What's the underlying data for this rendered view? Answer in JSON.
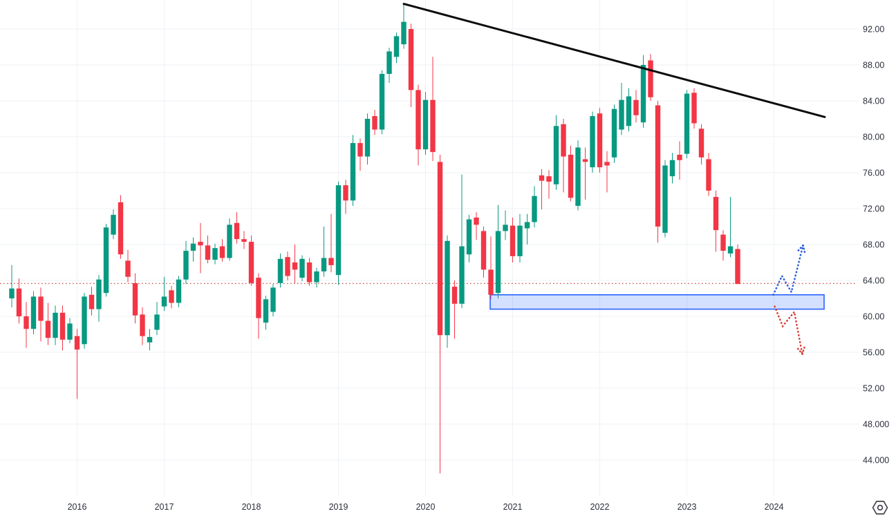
{
  "chart_data": {
    "type": "candlestick",
    "title": "",
    "interval": "monthly",
    "grid": true,
    "background": "#ffffff",
    "grid_color": "#eef1f6",
    "y_axis": {
      "side": "right",
      "min": 44,
      "max": 92,
      "step": 4,
      "labels": [
        "92.00",
        "88.00",
        "84.00",
        "80.00",
        "76.00",
        "72.00",
        "68.00",
        "64.00",
        "60.00",
        "56.00",
        "52.00",
        "48.000",
        "44.000"
      ],
      "values": [
        92,
        88,
        84,
        80,
        76,
        72,
        68,
        64,
        60,
        56,
        52,
        48,
        44
      ],
      "text_color": "#2a2e39"
    },
    "x_axis": {
      "labels": [
        "2016",
        "2017",
        "2018",
        "2019",
        "2020",
        "2021",
        "2022",
        "2023",
        "2024"
      ],
      "text_color": "#2a2e39"
    },
    "candle_colors": {
      "up": "#089981",
      "down": "#f23645"
    },
    "columns": [
      "month",
      "open",
      "high",
      "low",
      "close"
    ],
    "candles": [
      [
        "2015-04",
        62.0,
        65.7,
        61.0,
        63.1
      ],
      [
        "2015-05",
        63.1,
        64.2,
        59.2,
        60.0
      ],
      [
        "2015-06",
        60.0,
        61.6,
        56.5,
        58.6
      ],
      [
        "2015-07",
        58.6,
        62.8,
        58.0,
        62.2
      ],
      [
        "2015-08",
        62.2,
        63.2,
        57.2,
        59.5
      ],
      [
        "2015-09",
        59.5,
        61.5,
        56.8,
        57.6
      ],
      [
        "2015-10",
        57.6,
        61.2,
        56.8,
        60.4
      ],
      [
        "2015-11",
        60.4,
        61.2,
        56.2,
        57.4
      ],
      [
        "2015-12",
        57.4,
        59.8,
        57.0,
        59.2
      ],
      [
        "2016-01",
        57.8,
        58.6,
        50.8,
        56.3
      ],
      [
        "2016-02",
        56.9,
        62.6,
        56.4,
        62.2
      ],
      [
        "2016-03",
        62.4,
        63.3,
        60.1,
        60.8
      ],
      [
        "2016-04",
        60.8,
        64.6,
        59.4,
        64.1
      ],
      [
        "2016-05",
        62.6,
        70.3,
        62.2,
        69.9
      ],
      [
        "2016-06",
        69.1,
        71.9,
        68.6,
        71.3
      ],
      [
        "2016-07",
        72.7,
        73.5,
        66.4,
        66.9
      ],
      [
        "2016-08",
        66.2,
        67.4,
        63.8,
        64.4
      ],
      [
        "2016-09",
        63.7,
        64.8,
        59.2,
        60.1
      ],
      [
        "2016-10",
        60.2,
        61.0,
        56.8,
        57.8
      ],
      [
        "2016-11",
        57.1,
        58.6,
        56.2,
        57.7
      ],
      [
        "2016-12",
        58.5,
        61.6,
        57.9,
        60.2
      ],
      [
        "2017-01",
        61.1,
        64.4,
        60.6,
        62.2
      ],
      [
        "2017-02",
        62.9,
        63.4,
        60.9,
        61.5
      ],
      [
        "2017-03",
        61.5,
        64.5,
        61.0,
        64.1
      ],
      [
        "2017-04",
        64.1,
        68.4,
        63.6,
        67.3
      ],
      [
        "2017-05",
        67.3,
        68.8,
        66.1,
        68.1
      ],
      [
        "2017-06",
        68.3,
        70.4,
        64.8,
        67.9
      ],
      [
        "2017-07",
        67.9,
        69.0,
        65.9,
        66.3
      ],
      [
        "2017-08",
        66.3,
        68.1,
        65.8,
        67.6
      ],
      [
        "2017-09",
        67.8,
        68.6,
        66.1,
        66.5
      ],
      [
        "2017-10",
        66.5,
        70.9,
        66.2,
        70.2
      ],
      [
        "2017-11",
        70.4,
        71.6,
        68.1,
        68.6
      ],
      [
        "2017-12",
        68.6,
        69.5,
        67.5,
        68.3
      ],
      [
        "2018-01",
        68.3,
        69.0,
        63.4,
        63.7
      ],
      [
        "2018-02",
        64.3,
        64.8,
        57.5,
        59.8
      ],
      [
        "2018-03",
        59.3,
        62.3,
        58.5,
        61.9
      ],
      [
        "2018-04",
        60.5,
        63.6,
        60.0,
        63.2
      ],
      [
        "2018-05",
        63.7,
        67.0,
        63.2,
        66.4
      ],
      [
        "2018-06",
        66.6,
        67.2,
        64.0,
        64.5
      ],
      [
        "2018-07",
        66.0,
        68.0,
        63.7,
        65.2
      ],
      [
        "2018-08",
        64.3,
        66.8,
        63.9,
        66.4
      ],
      [
        "2018-09",
        66.0,
        66.5,
        63.4,
        63.8
      ],
      [
        "2018-10",
        63.8,
        65.4,
        63.2,
        65.0
      ],
      [
        "2018-11",
        65.0,
        70.0,
        64.4,
        66.5
      ],
      [
        "2018-12",
        66.5,
        71.4,
        64.9,
        65.7
      ],
      [
        "2019-01",
        64.6,
        75.0,
        63.5,
        74.6
      ],
      [
        "2019-02",
        74.6,
        75.2,
        71.4,
        72.9
      ],
      [
        "2019-03",
        72.9,
        80.2,
        72.3,
        79.3
      ],
      [
        "2019-04",
        79.3,
        79.8,
        76.2,
        77.8
      ],
      [
        "2019-05",
        77.8,
        82.6,
        76.9,
        82.0
      ],
      [
        "2019-06",
        82.3,
        83.0,
        80.2,
        80.8
      ],
      [
        "2019-07",
        80.8,
        87.4,
        80.3,
        87.0
      ],
      [
        "2019-08",
        87.0,
        89.9,
        86.0,
        89.5
      ],
      [
        "2019-09",
        88.9,
        91.6,
        88.2,
        91.2
      ],
      [
        "2019-10",
        90.3,
        94.8,
        89.8,
        92.8
      ],
      [
        "2019-11",
        92.0,
        92.6,
        83.3,
        85.2
      ],
      [
        "2019-12",
        85.2,
        85.8,
        76.8,
        78.6
      ],
      [
        "2020-01",
        78.6,
        85.0,
        78.0,
        84.1
      ],
      [
        "2020-02",
        84.1,
        88.9,
        77.3,
        78.3
      ],
      [
        "2020-03",
        77.2,
        78.0,
        42.5,
        57.9
      ],
      [
        "2020-04",
        57.9,
        69.0,
        56.5,
        68.4
      ],
      [
        "2020-05",
        63.3,
        64.0,
        57.5,
        61.4
      ],
      [
        "2020-06",
        61.4,
        75.8,
        60.9,
        67.8
      ],
      [
        "2020-07",
        66.9,
        71.3,
        66.0,
        70.8
      ],
      [
        "2020-08",
        71.0,
        71.6,
        68.5,
        70.2
      ],
      [
        "2020-09",
        69.5,
        70.0,
        64.3,
        65.2
      ],
      [
        "2020-10",
        65.2,
        68.9,
        61.9,
        62.4
      ],
      [
        "2020-11",
        62.6,
        72.4,
        62.0,
        69.5
      ],
      [
        "2020-12",
        69.5,
        71.8,
        68.5,
        70.2
      ],
      [
        "2021-01",
        70.1,
        71.0,
        66.0,
        66.7
      ],
      [
        "2021-02",
        66.7,
        71.4,
        66.0,
        70.1
      ],
      [
        "2021-03",
        69.8,
        71.4,
        68.0,
        70.5
      ],
      [
        "2021-04",
        70.5,
        74.5,
        69.9,
        73.4
      ],
      [
        "2021-05",
        75.7,
        76.4,
        71.9,
        75.1
      ],
      [
        "2021-06",
        75.6,
        76.3,
        73.1,
        75.0
      ],
      [
        "2021-07",
        74.7,
        82.4,
        74.1,
        81.2
      ],
      [
        "2021-08",
        81.4,
        82.0,
        73.8,
        77.8
      ],
      [
        "2021-09",
        78.0,
        79.0,
        72.8,
        73.2
      ],
      [
        "2021-10",
        72.3,
        79.6,
        71.8,
        78.8
      ],
      [
        "2021-11",
        77.5,
        78.8,
        73.0,
        77.2
      ],
      [
        "2021-12",
        76.6,
        82.8,
        76.0,
        82.3
      ],
      [
        "2022-01",
        82.6,
        83.2,
        76.0,
        76.6
      ],
      [
        "2022-02",
        77.2,
        78.4,
        73.8,
        76.8
      ],
      [
        "2022-03",
        77.7,
        83.6,
        77.1,
        83.1
      ],
      [
        "2022-04",
        80.8,
        86.0,
        80.2,
        84.1
      ],
      [
        "2022-05",
        81.2,
        85.4,
        80.6,
        84.5
      ],
      [
        "2022-06",
        84.1,
        85.2,
        81.6,
        82.4
      ],
      [
        "2022-07",
        81.6,
        89.1,
        81.0,
        88.0
      ],
      [
        "2022-08",
        88.5,
        89.2,
        84.0,
        84.4
      ],
      [
        "2022-09",
        83.5,
        84.0,
        68.2,
        70.0
      ],
      [
        "2022-10",
        69.3,
        77.4,
        68.8,
        76.8
      ],
      [
        "2022-11",
        75.6,
        78.2,
        74.8,
        77.4
      ],
      [
        "2022-12",
        78.0,
        79.5,
        75.2,
        77.4
      ],
      [
        "2023-01",
        78.1,
        85.2,
        77.6,
        84.8
      ],
      [
        "2023-02",
        84.9,
        85.4,
        80.9,
        81.5
      ],
      [
        "2023-03",
        80.9,
        81.4,
        76.9,
        77.7
      ],
      [
        "2023-04",
        77.5,
        78.2,
        73.4,
        74.0
      ],
      [
        "2023-05",
        73.3,
        74.0,
        67.2,
        69.6
      ],
      [
        "2023-06",
        69.1,
        69.6,
        66.2,
        67.3
      ],
      [
        "2023-07",
        67.0,
        73.3,
        66.6,
        67.8
      ],
      [
        "2023-08",
        67.5,
        68.0,
        63.6,
        63.6
      ]
    ],
    "price_line": {
      "price": 63.66,
      "style": "dotted",
      "color": "#cf4d49"
    },
    "trendline": {
      "description": "descending resistance trendline",
      "start": {
        "month_index": 54,
        "price": 94.8
      },
      "end": {
        "month_index": 112,
        "price": 82.2
      },
      "color": "#0b0b0b",
      "width": 3
    },
    "support_zone": {
      "description": "horizontal demand rectangle",
      "price_top": 62.4,
      "price_bottom": 60.8,
      "start_month_index": 66,
      "end_month_index": 112,
      "fill": "rgba(41,98,255,0.2)",
      "border": "#2962ff"
    },
    "projections": {
      "bullish": {
        "color": "#2f5fe0",
        "style": "dotted-arrow",
        "points": [
          {
            "i": 104.9,
            "p": 62.4
          },
          {
            "i": 106.1,
            "p": 64.5
          },
          {
            "i": 107.4,
            "p": 62.7
          },
          {
            "i": 109.0,
            "p": 67.9
          }
        ]
      },
      "bearish": {
        "color": "#d64540",
        "style": "dotted-arrow",
        "points": [
          {
            "i": 105.1,
            "p": 61.1
          },
          {
            "i": 106.2,
            "p": 58.9
          },
          {
            "i": 107.8,
            "p": 60.5
          },
          {
            "i": 108.9,
            "p": 55.8
          }
        ]
      }
    }
  },
  "icons": {
    "settings_hexagon": "hexagon-with-dot"
  },
  "layout_hint": {
    "first_candle_month": "2015-04",
    "january_label_indices": [
      9,
      21,
      33,
      45,
      57,
      69,
      81,
      93,
      105
    ]
  }
}
